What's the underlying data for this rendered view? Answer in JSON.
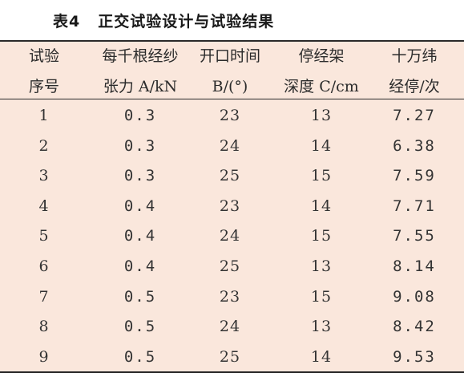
{
  "caption": {
    "label": "表4",
    "title": "正交试验设计与试验结果"
  },
  "headers": [
    {
      "line1": "试验",
      "line2": "序号"
    },
    {
      "line1": "每千根经纱",
      "line2": "张力 A/kN"
    },
    {
      "line1": "开口时间",
      "line2": "B/(°)"
    },
    {
      "line1": "停经架",
      "line2": "深度 C/cm"
    },
    {
      "line1": "十万纬",
      "line2": "经停/次"
    }
  ],
  "rows": [
    [
      "1",
      "0.3",
      "23",
      "13",
      "7.27"
    ],
    [
      "2",
      "0.3",
      "24",
      "14",
      "6.38"
    ],
    [
      "3",
      "0.3",
      "25",
      "15",
      "7.59"
    ],
    [
      "4",
      "0.4",
      "23",
      "14",
      "7.71"
    ],
    [
      "5",
      "0.4",
      "24",
      "15",
      "7.55"
    ],
    [
      "6",
      "0.4",
      "25",
      "13",
      "8.14"
    ],
    [
      "7",
      "0.5",
      "23",
      "15",
      "9.08"
    ],
    [
      "8",
      "0.5",
      "24",
      "13",
      "8.42"
    ],
    [
      "9",
      "0.5",
      "25",
      "14",
      "9.53"
    ]
  ],
  "colors": {
    "table_background": "#fae7dc",
    "rule": "#2a2a2a"
  }
}
